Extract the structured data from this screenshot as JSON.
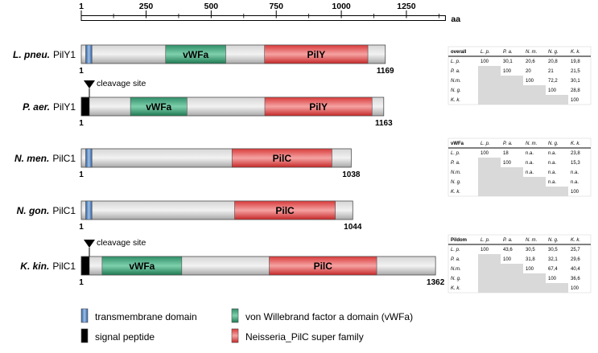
{
  "axis": {
    "unit": "aa",
    "ticks": [
      "1",
      "250",
      "500",
      "750",
      "1000",
      "1250"
    ],
    "tick_values": [
      1,
      250,
      500,
      750,
      1000,
      1250
    ],
    "max": 1400
  },
  "proteins": [
    {
      "species": "L. pneu.",
      "name": "PilY1",
      "length": 1169,
      "length_label": "1169",
      "start_label": "1",
      "cleavage": null,
      "domains": [
        {
          "type": "tm",
          "start": 18,
          "end": 42
        },
        {
          "type": "vwfa",
          "start": 325,
          "end": 556,
          "label": "vWFa"
        },
        {
          "type": "pilc",
          "start": 705,
          "end": 1102,
          "label": "PilY"
        }
      ]
    },
    {
      "species": "P. aer.",
      "name": "PilY1",
      "length": 1163,
      "length_label": "1163",
      "start_label": "1",
      "cleavage": "cleavage site",
      "domains": [
        {
          "type": "signal",
          "start": 1,
          "end": 32
        },
        {
          "type": "vwfa",
          "start": 190,
          "end": 407,
          "label": "vWFa"
        },
        {
          "type": "pilc",
          "start": 706,
          "end": 1118,
          "label": "PilY"
        }
      ]
    },
    {
      "species": "N. men.",
      "name": "PilC1",
      "length": 1038,
      "length_label": "1038",
      "start_label": "1",
      "cleavage": null,
      "domains": [
        {
          "type": "tm",
          "start": 18,
          "end": 42
        },
        {
          "type": "pilc",
          "start": 580,
          "end": 964,
          "label": "PilC"
        }
      ]
    },
    {
      "species": "N. gon.",
      "name": "PilC1",
      "length": 1044,
      "length_label": "1044",
      "start_label": "1",
      "cleavage": null,
      "domains": [
        {
          "type": "tm",
          "start": 18,
          "end": 42
        },
        {
          "type": "pilc",
          "start": 590,
          "end": 977,
          "label": "PilC"
        }
      ]
    },
    {
      "species": "K. kin.",
      "name": "PilC1",
      "length": 1362,
      "length_label": "1362",
      "start_label": "1",
      "cleavage": "cleavage site",
      "domains": [
        {
          "type": "signal",
          "start": 1,
          "end": 32
        },
        {
          "type": "vwfa",
          "start": 81,
          "end": 387,
          "label": "vWFa"
        },
        {
          "type": "pilc",
          "start": 723,
          "end": 1136,
          "label": "PilC"
        }
      ]
    }
  ],
  "legend": [
    {
      "type": "tm",
      "label": "transmembrane domain"
    },
    {
      "type": "vwfa",
      "label": "von Willebrand factor a domain (vWFa)"
    },
    {
      "type": "signal",
      "label": "signal peptide"
    },
    {
      "type": "pilc",
      "label": "Neisseria_PilC super family"
    }
  ],
  "colors": {
    "backbone": "#bdbdbd",
    "tm": "#4a78b6",
    "vwfa": "#3aa57a",
    "pilc": "#e04848",
    "signal": "#000000",
    "shade": "#d9d9d9"
  },
  "tables": [
    {
      "title": "overall",
      "headers": [
        "L. p.",
        "P. a.",
        "N. m.",
        "N. g.",
        "K. k."
      ],
      "rows": [
        {
          "label": "L. p.",
          "cells": [
            "100",
            "30,1",
            "20,6",
            "20,8",
            "19,8"
          ]
        },
        {
          "label": "P. a.",
          "cells": [
            "",
            "100",
            "20",
            "21",
            "21,5"
          ]
        },
        {
          "label": "N.m.",
          "cells": [
            "",
            "",
            "100",
            "72,2",
            "30,1"
          ]
        },
        {
          "label": "N. g.",
          "cells": [
            "",
            "",
            "",
            "100",
            "28,8"
          ]
        },
        {
          "label": "K. k.",
          "cells": [
            "",
            "",
            "",
            "",
            "100"
          ]
        }
      ]
    },
    {
      "title": "vWFa",
      "headers": [
        "L. p.",
        "P. a.",
        "N. m.",
        "N. g.",
        "K. k."
      ],
      "rows": [
        {
          "label": "L. p.",
          "cells": [
            "100",
            "18",
            "n.a.",
            "n.a.",
            "23,8"
          ]
        },
        {
          "label": "P. a.",
          "cells": [
            "",
            "100",
            "n.a.",
            "n.a.",
            "15,3"
          ]
        },
        {
          "label": "N.m.",
          "cells": [
            "",
            "",
            "n.a.",
            "n.a.",
            "n.a."
          ]
        },
        {
          "label": "N. g.",
          "cells": [
            "",
            "",
            "",
            "n.a.",
            "n.a."
          ]
        },
        {
          "label": "K. k.",
          "cells": [
            "",
            "",
            "",
            "",
            "100"
          ]
        }
      ]
    },
    {
      "title": "Pildom",
      "headers": [
        "L. p.",
        "P. a.",
        "N. m.",
        "N. g.",
        "K. k."
      ],
      "rows": [
        {
          "label": "L. p.",
          "cells": [
            "100",
            "43,6",
            "30,5",
            "30,5",
            "25,7"
          ]
        },
        {
          "label": "P. a.",
          "cells": [
            "",
            "100",
            "31,8",
            "32,1",
            "29,6"
          ]
        },
        {
          "label": "N.m.",
          "cells": [
            "",
            "",
            "100",
            "67,4",
            "40,4"
          ]
        },
        {
          "label": "N. g.",
          "cells": [
            "",
            "",
            "",
            "100",
            "36,6"
          ]
        },
        {
          "label": "K. k.",
          "cells": [
            "",
            "",
            "",
            "",
            "100"
          ]
        }
      ]
    }
  ]
}
